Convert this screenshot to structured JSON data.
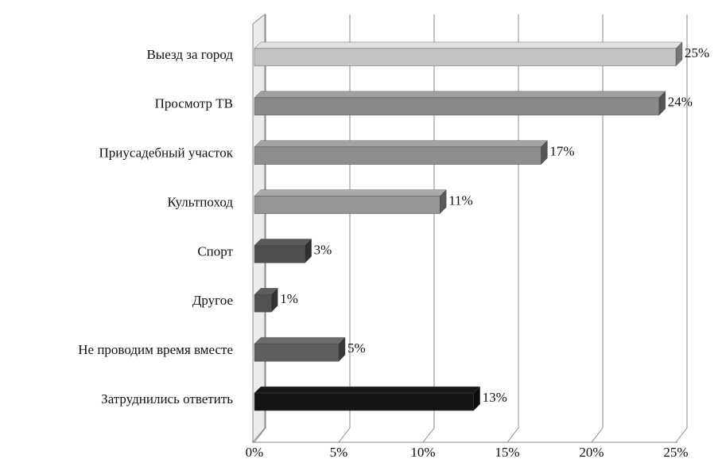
{
  "chart_data": {
    "type": "bar",
    "orientation": "horizontal",
    "three_d": true,
    "categories": [
      "Выезд за город",
      "Просмотр ТВ",
      "Приусадебный участок",
      "Культпоход",
      "Спорт",
      "Другое",
      "Не проводим время вместе",
      "Затруднились ответить"
    ],
    "values": [
      25,
      24,
      17,
      11,
      3,
      1,
      5,
      13
    ],
    "value_labels": [
      "25%",
      "24%",
      "17%",
      "11%",
      "3%",
      "1%",
      "5%",
      "13%"
    ],
    "colors": [
      "#c4c4c4",
      "#8a8a8a",
      "#8e8e8e",
      "#959595",
      "#4f4f4f",
      "#525252",
      "#5e5e5e",
      "#141414"
    ],
    "xlim": [
      0,
      25
    ],
    "xticks": [
      {
        "value": 0,
        "label": "0%"
      },
      {
        "value": 5,
        "label": "5%"
      },
      {
        "value": 10,
        "label": "10%"
      },
      {
        "value": 15,
        "label": "15%"
      },
      {
        "value": 20,
        "label": "20%"
      },
      {
        "value": 25,
        "label": "25%"
      }
    ],
    "grid": true
  }
}
